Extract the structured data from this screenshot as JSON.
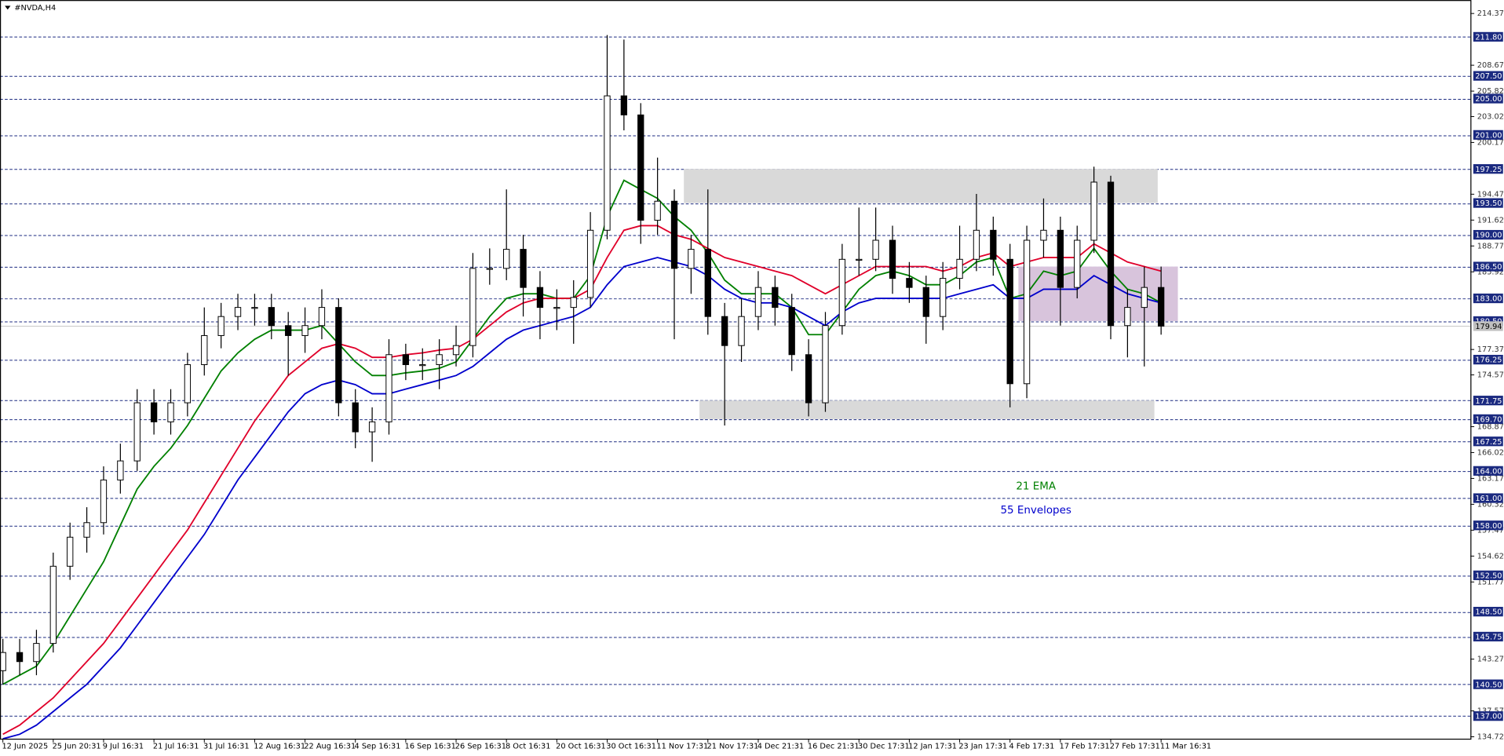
{
  "chart_data": {
    "type": "candlestick",
    "title": "#NVDA,H4",
    "categories": [
      "12 Jun 2025",
      null,
      null,
      "25 Jun 20:31",
      null,
      null,
      "9 Jul 16:31",
      null,
      null,
      "21 Jul 16:31",
      null,
      null,
      "31 Jul 16:31",
      null,
      null,
      "12 Aug 16:31",
      null,
      null,
      "22 Aug 16:31",
      null,
      null,
      "4 Sep 16:31",
      null,
      null,
      "16 Sep 16:31",
      null,
      null,
      "26 Sep 16:31",
      null,
      null,
      "8 Oct 16:31",
      null,
      null,
      "20 Oct 16:31",
      null,
      null,
      "30 Oct 16:31",
      null,
      null,
      "11 Nov 17:31",
      null,
      null,
      "21 Nov 17:31",
      null,
      null,
      "4 Dec 21:31",
      null,
      null,
      "16 Dec 21:31",
      null,
      null,
      "30 Dec 17:31",
      null,
      null,
      "12 Jan 17:31",
      null,
      null,
      "23 Jan 17:31",
      null,
      null,
      "4 Feb 17:31",
      null,
      null,
      "17 Feb 17:31",
      null,
      null,
      "27 Feb 17:31",
      null,
      null,
      "11 Mar 16:31"
    ],
    "open": [
      142,
      144,
      143,
      145,
      153.5,
      156.7,
      158.3,
      163,
      165.1,
      171.5,
      169.4,
      171.5,
      175.7,
      178.9,
      181,
      182,
      182,
      180,
      178.9,
      180,
      182,
      171.5,
      168.3,
      169.4,
      176.8,
      175.7,
      175.7,
      176.8,
      177.8,
      186.3,
      186.3,
      188.4,
      184.2,
      182,
      182,
      183.1,
      190.5,
      205.3,
      203.2,
      191.6,
      193.7,
      186.3,
      188.4,
      181,
      177.8,
      181,
      184.2,
      182,
      176.8,
      171.5,
      180,
      187.3,
      187.3,
      189.4,
      185.2,
      184.2,
      181,
      185.2,
      187.3,
      190.5,
      187.3,
      173.6,
      189.4,
      190.5,
      184.2,
      189.4,
      195.8,
      180,
      182,
      184.2
    ],
    "high": [
      145.5,
      145.5,
      146.5,
      155,
      158.3,
      160,
      164.5,
      167,
      173,
      173,
      173,
      177,
      182,
      182.5,
      183.5,
      183.5,
      183.5,
      181.5,
      182,
      184,
      183,
      173,
      171,
      178.5,
      178,
      177.5,
      178.5,
      180,
      188,
      188.5,
      195,
      190,
      186,
      184,
      185,
      192.5,
      212,
      211.5,
      204.5,
      198.5,
      195,
      190,
      195,
      182.5,
      183,
      186,
      185.5,
      183.5,
      178.5,
      181.5,
      189,
      193,
      193,
      191,
      187,
      185.5,
      187,
      191,
      194.5,
      192,
      189,
      191,
      194,
      192,
      191,
      197.5,
      196.5,
      184,
      186.5,
      186.5
    ],
    "low": [
      140.5,
      141.5,
      141.5,
      144,
      152,
      155,
      157,
      161.5,
      164,
      168,
      168,
      170,
      174.5,
      177.5,
      179.5,
      180,
      178.5,
      174.5,
      177,
      178.5,
      170,
      166.5,
      165,
      168,
      174,
      174,
      173,
      175.5,
      176.5,
      184.5,
      185,
      181,
      178.5,
      179.5,
      178,
      182,
      189.5,
      201.5,
      189,
      190,
      178.5,
      183.5,
      179,
      169,
      176,
      179.5,
      180,
      175,
      170,
      170.5,
      179,
      185.5,
      186,
      183.5,
      182.5,
      178,
      179.5,
      184,
      186,
      185.5,
      171,
      172,
      187.5,
      180,
      183,
      188,
      178.5,
      176.5,
      175.5,
      179
    ],
    "close": [
      144,
      143,
      145,
      153.5,
      156.7,
      158.3,
      163,
      165.1,
      171.5,
      169.4,
      171.5,
      175.7,
      178.9,
      181,
      182,
      182,
      180,
      178.9,
      180,
      182,
      171.5,
      168.3,
      169.4,
      176.8,
      175.7,
      175.7,
      176.8,
      177.8,
      186.3,
      186.3,
      188.4,
      184.2,
      182,
      182,
      183.1,
      190.5,
      205.3,
      203.2,
      191.6,
      193.7,
      186.3,
      188.4,
      181,
      177.8,
      181,
      184.2,
      182,
      176.8,
      171.5,
      180,
      187.3,
      187.3,
      189.4,
      185.2,
      184.2,
      181,
      185.2,
      187.3,
      190.5,
      187.3,
      173.6,
      189.4,
      190.5,
      184.2,
      189.4,
      195.8,
      180,
      182,
      184.2,
      179.94
    ],
    "series": [
      {
        "name": "21 EMA",
        "color": "#008000",
        "values": [
          140.5,
          141.5,
          142.5,
          145,
          148,
          151,
          154,
          158,
          162,
          164.5,
          166.5,
          169,
          172,
          175,
          177,
          178.5,
          179.5,
          179.5,
          179.5,
          180,
          178,
          176,
          174.5,
          174.5,
          174.8,
          175,
          175.3,
          176,
          178.5,
          181,
          183,
          183.5,
          183.5,
          183,
          183,
          185.5,
          192,
          196,
          195,
          194,
          192,
          190.5,
          188,
          185,
          183.5,
          183.5,
          183.5,
          182,
          179,
          179,
          181.5,
          184,
          185.5,
          186,
          185.5,
          184.5,
          184.5,
          185.5,
          187,
          187.5,
          183,
          183.5,
          186,
          185.5,
          186,
          188.5,
          186,
          184,
          183.5,
          182.5
        ]
      },
      {
        "color": "#e0002a",
        "values": [
          135,
          136,
          137.5,
          139,
          141,
          143,
          145,
          147.5,
          150,
          152.5,
          155,
          157.5,
          160.5,
          163.5,
          166.5,
          169.5,
          172,
          174.5,
          176,
          177.5,
          178,
          177.5,
          176.5,
          176.5,
          176.8,
          177,
          177.3,
          177.5,
          178.5,
          180,
          181.5,
          182.5,
          183,
          183,
          183,
          184,
          187.5,
          190.5,
          191,
          191,
          190,
          189.5,
          188.5,
          187.5,
          187,
          186.5,
          186,
          185.5,
          184.5,
          183.5,
          184.5,
          185.5,
          186.5,
          186.5,
          186.5,
          186.5,
          186,
          186.5,
          187.5,
          188,
          186.5,
          187,
          187.5,
          187.5,
          187.5,
          189,
          188,
          187,
          186.5,
          186
        ]
      },
      {
        "name": "55 Envelopes",
        "color": "#0000cc",
        "values": [
          134.5,
          135,
          136,
          137.5,
          139,
          140.5,
          142.5,
          144.5,
          147,
          149.5,
          152,
          154.5,
          157,
          160,
          163,
          165.5,
          168,
          170.5,
          172.5,
          173.5,
          174,
          173.5,
          172.5,
          172.5,
          173,
          173.5,
          174,
          174.5,
          175.5,
          177,
          178.5,
          179.5,
          180,
          180.5,
          181,
          182,
          184.5,
          186.5,
          187,
          187.5,
          187,
          186.5,
          185.5,
          184,
          183,
          182.5,
          182.5,
          182,
          181,
          180,
          181.5,
          182.5,
          183,
          183,
          183,
          183,
          183,
          183.5,
          184,
          184.5,
          183,
          183,
          184,
          184,
          184,
          185.5,
          184.5,
          183.5,
          183,
          182.5
        ]
      }
    ],
    "ylim": [
      134.51,
      215.85
    ],
    "yticks": [
      214.37,
      208.67,
      205.82,
      203.02,
      200.17,
      194.47,
      191.62,
      188.77,
      185.92,
      177.37,
      174.57,
      168.87,
      166.02,
      163.17,
      160.32,
      157.47,
      154.62,
      151.77,
      143.27,
      137.57,
      134.72
    ],
    "levels": [
      {
        "value": 211.8,
        "label": "211.80"
      },
      {
        "value": 207.5,
        "label": "207.50"
      },
      {
        "value": 205,
        "label": "205.00"
      },
      {
        "value": 201,
        "label": "201.00"
      },
      197.25,
      {
        "value": 193.5,
        "label": "193.50"
      },
      {
        "value": 190,
        "label": "190.00"
      },
      {
        "value": 186.5,
        "label": "186.50"
      },
      {
        "value": 183,
        "label": "183.00"
      },
      {
        "value": 180.5,
        "label": "180.50"
      },
      176.25,
      171.75,
      {
        "value": 169.7,
        "label": "169.70"
      },
      167.25,
      {
        "value": 164,
        "label": "164.00"
      },
      {
        "value": 161,
        "label": "161.00"
      },
      {
        "value": 158,
        "label": "158.00"
      },
      {
        "value": 152.5,
        "label": "152.50"
      },
      {
        "value": 148.5,
        "label": "148.50"
      },
      145.75,
      {
        "value": 140.5,
        "label": "140.50"
      },
      {
        "value": 137,
        "label": "137.00"
      }
    ],
    "level_color": "#1b2a80",
    "zones": [
      {
        "x": [
          40.57,
          68.8
        ],
        "y": [
          193.5,
          197.25
        ],
        "color": "#d9d9d9"
      },
      {
        "x": [
          41.5,
          68.6
        ],
        "y": [
          169.7,
          171.75
        ],
        "color": "#d9d9d9"
      },
      {
        "x": [
          60.5,
          70
        ],
        "y": [
          180.5,
          186.5
        ],
        "color": "#d8c4dc"
      }
    ]
  }
}
